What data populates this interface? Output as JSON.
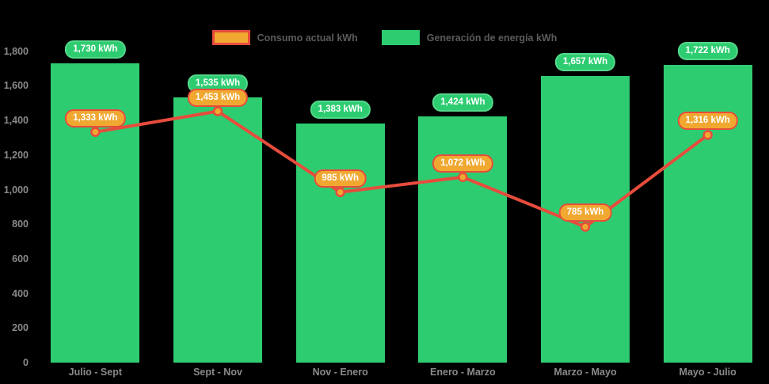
{
  "page": {
    "background": "#000000"
  },
  "colors": {
    "bar": "#2ecc71",
    "bar_label_border": "#53d88a",
    "line": "#e74c3c",
    "point_fill": "#f0a830",
    "line_label_bg": "#f0a830",
    "line_label_border": "#e74c3c",
    "label_text": "#ffffff",
    "axis_text": "#8a8a8a",
    "legend_text": "#5b5b5b"
  },
  "chart_data": {
    "type": "bar",
    "title": "",
    "xlabel": "",
    "ylabel": "",
    "categories": [
      "Julio - Sept",
      "Sept - Nov",
      "Nov - Enero",
      "Enero - Marzo",
      "Marzo - Mayo",
      "Mayo - Julio"
    ],
    "series": [
      {
        "name": "Generación de energía kWh",
        "type": "bar",
        "color": "#2ecc71",
        "values": [
          1730,
          1535,
          1383,
          1424,
          1657,
          1722
        ],
        "labels": [
          "1,730 kWh",
          "1,535 kWh",
          "1,383 kWh",
          "1,424 kWh",
          "1,657 kWh",
          "1,722 kWh"
        ]
      },
      {
        "name": "Consumo actual kWh",
        "type": "line",
        "color": "#e74c3c",
        "point_color": "#f0a830",
        "values": [
          1333,
          1453,
          985,
          1072,
          785,
          1316
        ],
        "labels": [
          "1,333 kWh",
          "1,453 kWh",
          "985 kWh",
          "1,072 kWh",
          "785 kWh",
          "1,316 kWh"
        ]
      }
    ],
    "ylim": [
      0,
      1800
    ],
    "yticks": [
      {
        "value": 0,
        "label": "0"
      },
      {
        "value": 200,
        "label": "200"
      },
      {
        "value": 400,
        "label": "400"
      },
      {
        "value": 600,
        "label": "600"
      },
      {
        "value": 800,
        "label": "800"
      },
      {
        "value": 1000,
        "label": "1,000"
      },
      {
        "value": 1200,
        "label": "1,200"
      },
      {
        "value": 1400,
        "label": "1,400"
      },
      {
        "value": 1600,
        "label": "1,600"
      },
      {
        "value": 1800,
        "label": "1,800"
      }
    ],
    "grid": false,
    "legend_position": "top"
  }
}
